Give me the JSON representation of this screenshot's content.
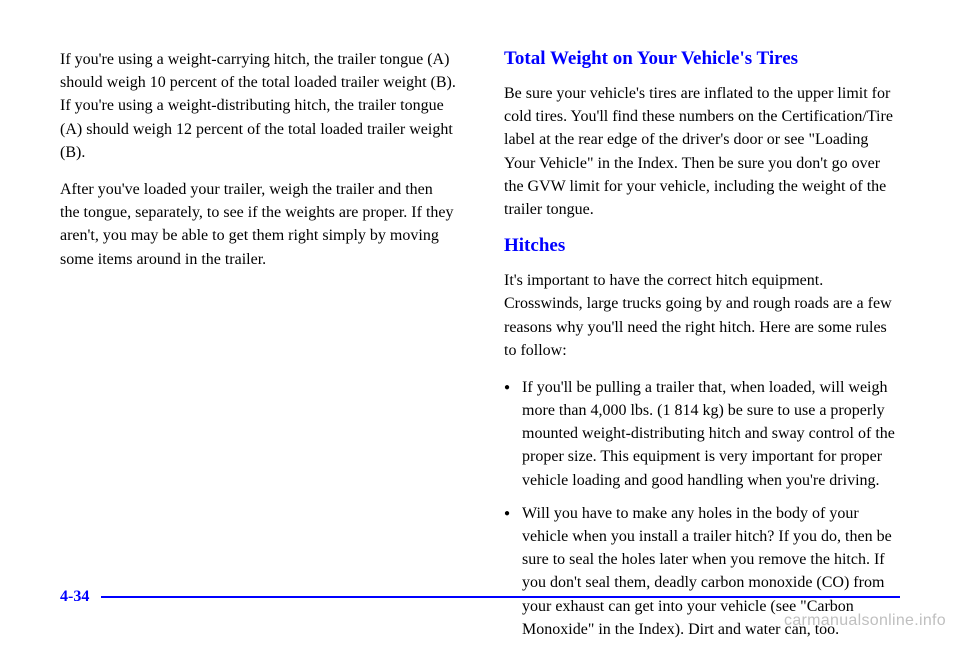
{
  "left": {
    "p1": "If you're using a weight-carrying hitch, the trailer tongue (A) should weigh 10 percent of the total loaded trailer weight (B). If you're using a weight-distributing hitch, the trailer tongue (A) should weigh 12 percent of the total loaded trailer weight (B).",
    "p2": "After you've loaded your trailer, weigh the trailer and then the tongue, separately, to see if the weights are proper. If they aren't, you may be able to get them right simply by moving some items around in the trailer."
  },
  "right": {
    "h1": "Total Weight on Your Vehicle's Tires",
    "p1": "Be sure your vehicle's tires are inflated to the upper limit for cold tires. You'll find these numbers on the Certification/Tire label at the rear edge of the driver's door or see \"Loading Your Vehicle\" in the Index. Then be sure you don't go over the GVW limit for your vehicle, including the weight of the trailer tongue.",
    "h2": "Hitches",
    "p2": "It's important to have the correct hitch equipment. Crosswinds, large trucks going by and rough roads are a few reasons why you'll need the right hitch. Here are some rules to follow:",
    "bullets": [
      "If you'll be pulling a trailer that, when loaded, will weigh more than 4,000 lbs. (1 814 kg) be sure to use a properly mounted weight-distributing hitch and sway control of the proper size. This equipment is very important for proper vehicle loading and good handling when you're driving.",
      "Will you have to make any holes in the body of your vehicle when you install a trailer hitch? If you do, then be sure to seal the holes later when you remove the hitch. If you don't seal them, deadly carbon monoxide (CO) from your exhaust can get into your vehicle (see \"Carbon Monoxide\" in the Index). Dirt and water can, too."
    ]
  },
  "footer": {
    "page": "4-34"
  },
  "watermark": "carmanualsonline.info"
}
